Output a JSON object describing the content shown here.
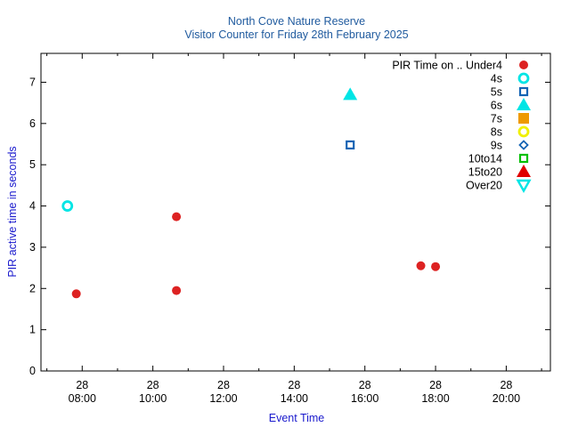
{
  "chart_data": {
    "type": "scatter",
    "title": "North Cove Nature Reserve",
    "subtitle": "Visitor Counter for Friday 28th February 2025",
    "xlabel": "Event Time",
    "ylabel": "PIR active time in seconds",
    "xlim": [
      "2025-02-28 06:50",
      "2025-02-28 21:15"
    ],
    "ylim": [
      0,
      7.7
    ],
    "y_ticks": [
      0,
      1,
      2,
      3,
      4,
      5,
      6,
      7
    ],
    "x_ticks": [
      {
        "time": "2025-02-28 08:00",
        "day": "28",
        "clock": "08:00"
      },
      {
        "time": "2025-02-28 10:00",
        "day": "28",
        "clock": "10:00"
      },
      {
        "time": "2025-02-28 12:00",
        "day": "28",
        "clock": "12:00"
      },
      {
        "time": "2025-02-28 14:00",
        "day": "28",
        "clock": "14:00"
      },
      {
        "time": "2025-02-28 16:00",
        "day": "28",
        "clock": "16:00"
      },
      {
        "time": "2025-02-28 18:00",
        "day": "28",
        "clock": "18:00"
      },
      {
        "time": "2025-02-28 20:00",
        "day": "28",
        "clock": "20:00"
      }
    ],
    "legend_position": "top-right",
    "legend_title": "PIR Time on ..",
    "series": [
      {
        "name": "Under4",
        "marker": "filled-circle",
        "color": "#dd2222",
        "points": [
          {
            "x": "2025-02-28 07:50",
            "y": 1.87
          },
          {
            "x": "2025-02-28 10:40",
            "y": 1.95
          },
          {
            "x": "2025-02-28 10:40",
            "y": 3.74
          },
          {
            "x": "2025-02-28 17:35",
            "y": 2.55
          },
          {
            "x": "2025-02-28 18:00",
            "y": 2.53
          }
        ]
      },
      {
        "name": "4s",
        "marker": "open-circle",
        "color": "#00e5e5",
        "points": [
          {
            "x": "2025-02-28 07:35",
            "y": 4.0
          }
        ]
      },
      {
        "name": "5s",
        "marker": "open-square",
        "color": "#1464b4",
        "points": [
          {
            "x": "2025-02-28 15:35",
            "y": 5.48
          }
        ]
      },
      {
        "name": "6s",
        "marker": "filled-triangle",
        "color": "#00e5e5",
        "points": [
          {
            "x": "2025-02-28 15:35",
            "y": 6.7
          }
        ]
      },
      {
        "name": "7s",
        "marker": "filled-square",
        "color": "#ee9a00",
        "points": []
      },
      {
        "name": "8s",
        "marker": "open-circle",
        "color": "#f0f000",
        "points": []
      },
      {
        "name": "9s",
        "marker": "open-diamond",
        "color": "#1464b4",
        "points": []
      },
      {
        "name": "10to14",
        "marker": "open-square",
        "color": "#00c000",
        "points": []
      },
      {
        "name": "15to20",
        "marker": "filled-triangle",
        "color": "#e00000",
        "points": []
      },
      {
        "name": "Over20",
        "marker": "open-triangle-down",
        "color": "#00e5e5",
        "points": []
      }
    ],
    "colors": {
      "title": "#1f5a9e",
      "axis_label": "#1a1acd",
      "axis": "#000000"
    }
  }
}
